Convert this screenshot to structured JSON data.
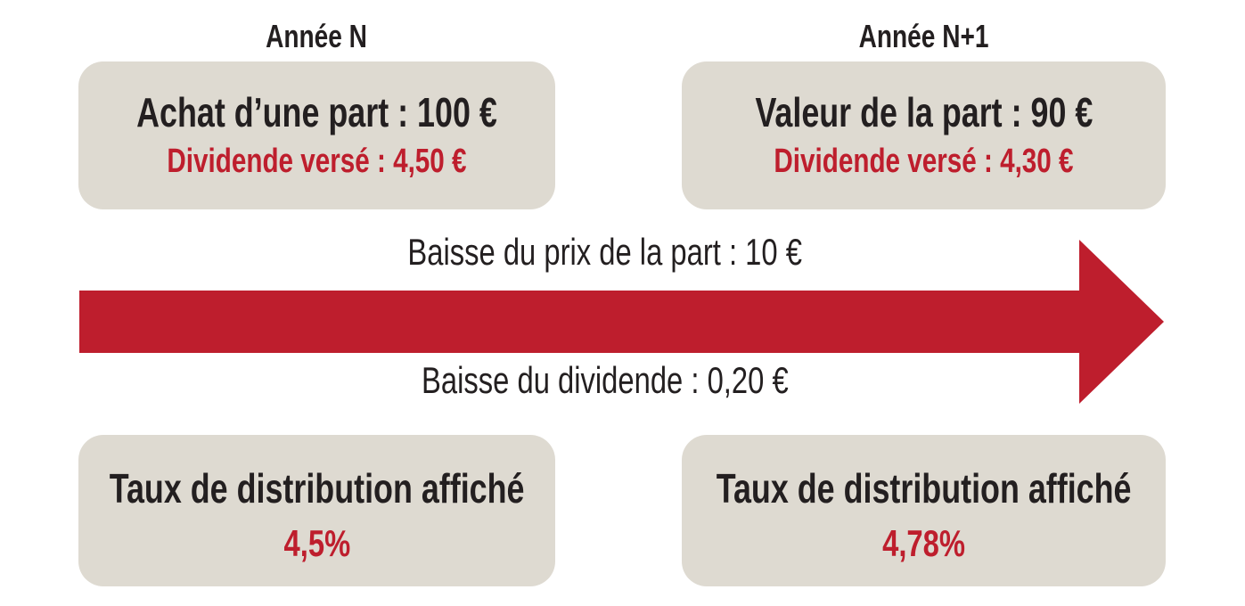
{
  "palette": {
    "red": "#be1e2d",
    "beige": "#dedad1",
    "text_black": "#231f20",
    "background": "#ffffff"
  },
  "columns": {
    "year_n": {
      "header": "Année N",
      "top_box": {
        "title": "Achat d’une part : 100 €",
        "subtitle": "Dividende versé : 4,50 €"
      },
      "bottom_box": {
        "title": "Taux de distribution affiché",
        "value": "4,5%"
      }
    },
    "year_n_plus_1": {
      "header": "Année N+1",
      "top_box": {
        "title": "Valeur de la part : 90 €",
        "subtitle": "Dividende versé : 4,30 €"
      },
      "bottom_box": {
        "title": "Taux de distribution affiché",
        "value": "4,78%"
      }
    }
  },
  "arrow": {
    "label_above": "Baisse du prix de la part : 10 €",
    "label_below": "Baisse du dividende : 0,20 €"
  }
}
